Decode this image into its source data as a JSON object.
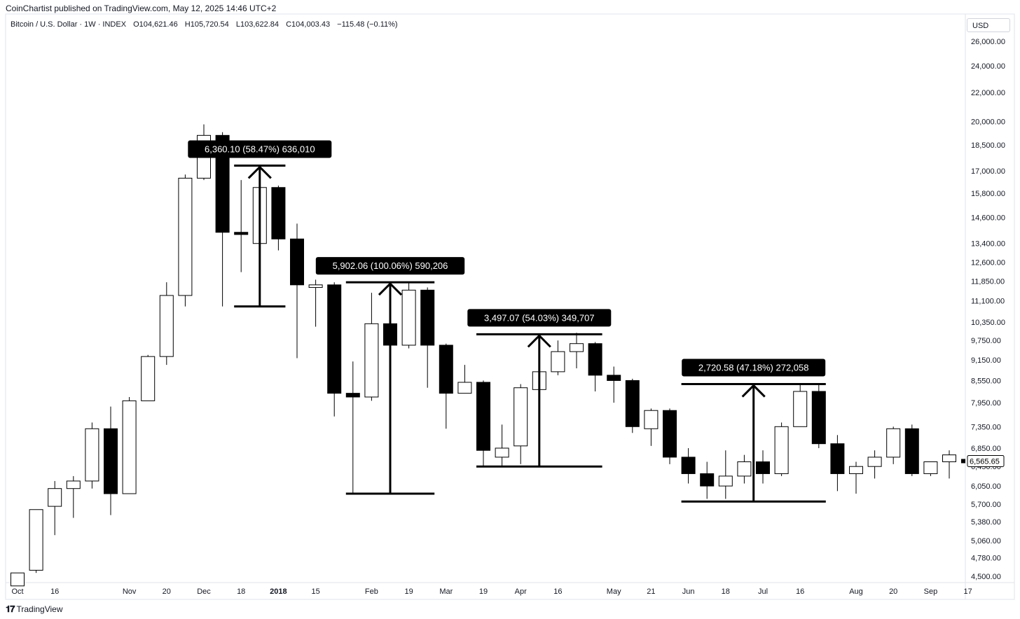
{
  "header": {
    "attribution": "CoinChartist published on TradingView.com, May 12, 2025 14:46 UTC+2",
    "symbol": "Bitcoin / U.S. Dollar · 1W · INDEX",
    "open": "O104,621.46",
    "high": "H105,720.54",
    "low": "L103,622.84",
    "close": "C104,003.43",
    "change": "−115.48 (−0.11%)"
  },
  "currency": "USD",
  "footer": {
    "logo_mark": "𝟏𝟕",
    "logo_text": "TradingView"
  },
  "chart_data": {
    "type": "candlestick",
    "scale": "log",
    "ylim": [
      4400,
      27000
    ],
    "y_ticks": [
      "26,000.00",
      "24,000.00",
      "22,000.00",
      "20,000.00",
      "18,500.00",
      "17,000.00",
      "15,800.00",
      "14,600.00",
      "13,400.00",
      "12,600.00",
      "11,850.00",
      "11,100.00",
      "10,350.00",
      "9,750.00",
      "9,150.00",
      "8,550.00",
      "7,950.00",
      "7,350.00",
      "6,850.00",
      "6,450.00",
      "6,050.00",
      "5,700.00",
      "5,380.00",
      "5,060.00",
      "4,780.00",
      "4,500.00"
    ],
    "x_ticks": [
      {
        "label": "Oct",
        "i": 0
      },
      {
        "label": "16",
        "i": 2
      },
      {
        "label": "Nov",
        "i": 6
      },
      {
        "label": "20",
        "i": 8
      },
      {
        "label": "Dec",
        "i": 10
      },
      {
        "label": "18",
        "i": 12
      },
      {
        "label": "2018",
        "i": 14,
        "bold": true
      },
      {
        "label": "15",
        "i": 16
      },
      {
        "label": "Feb",
        "i": 19
      },
      {
        "label": "19",
        "i": 21
      },
      {
        "label": "Mar",
        "i": 23
      },
      {
        "label": "19",
        "i": 25
      },
      {
        "label": "Apr",
        "i": 27
      },
      {
        "label": "16",
        "i": 29
      },
      {
        "label": "May",
        "i": 32
      },
      {
        "label": "21",
        "i": 34
      },
      {
        "label": "Jun",
        "i": 36
      },
      {
        "label": "18",
        "i": 38
      },
      {
        "label": "Jul",
        "i": 40
      },
      {
        "label": "16",
        "i": 42
      },
      {
        "label": "Aug",
        "i": 45
      },
      {
        "label": "20",
        "i": 47
      },
      {
        "label": "Sep",
        "i": 49
      },
      {
        "label": "17",
        "i": 51
      }
    ],
    "last_price": "6,565.65",
    "candles": [
      {
        "o": 4360,
        "h": 4550,
        "l": 4360,
        "c": 4550
      },
      {
        "o": 4590,
        "h": 5600,
        "l": 4550,
        "c": 5600
      },
      {
        "o": 5660,
        "h": 6150,
        "l": 5150,
        "c": 6000
      },
      {
        "o": 6000,
        "h": 6250,
        "l": 5450,
        "c": 6150
      },
      {
        "o": 6150,
        "h": 7450,
        "l": 6000,
        "c": 7300
      },
      {
        "o": 7300,
        "h": 7850,
        "l": 5500,
        "c": 5900
      },
      {
        "o": 5900,
        "h": 8100,
        "l": 5900,
        "c": 8000
      },
      {
        "o": 8000,
        "h": 9300,
        "l": 8000,
        "c": 9250
      },
      {
        "o": 9250,
        "h": 11800,
        "l": 9000,
        "c": 11300
      },
      {
        "o": 11300,
        "h": 16800,
        "l": 10900,
        "c": 16600
      },
      {
        "o": 16600,
        "h": 19800,
        "l": 16500,
        "c": 19100
      },
      {
        "o": 19100,
        "h": 19300,
        "l": 10900,
        "c": 13900
      },
      {
        "o": 13900,
        "h": 16500,
        "l": 12200,
        "c": 13800
      },
      {
        "o": 13400,
        "h": 17100,
        "l": 12800,
        "c": 16100
      },
      {
        "o": 16100,
        "h": 16200,
        "l": 13100,
        "c": 13600
      },
      {
        "o": 13600,
        "h": 14300,
        "l": 9200,
        "c": 11700
      },
      {
        "o": 11600,
        "h": 11900,
        "l": 10200,
        "c": 11700
      },
      {
        "o": 11700,
        "h": 11800,
        "l": 7600,
        "c": 8200
      },
      {
        "o": 8200,
        "h": 9100,
        "l": 5900,
        "c": 8100
      },
      {
        "o": 8100,
        "h": 11400,
        "l": 8000,
        "c": 10300
      },
      {
        "o": 10300,
        "h": 11200,
        "l": 9500,
        "c": 9600
      },
      {
        "o": 9600,
        "h": 11800,
        "l": 9500,
        "c": 11500
      },
      {
        "o": 11500,
        "h": 11600,
        "l": 8350,
        "c": 9600
      },
      {
        "o": 9600,
        "h": 9650,
        "l": 7300,
        "c": 8200
      },
      {
        "o": 8200,
        "h": 9000,
        "l": 8200,
        "c": 8500
      },
      {
        "o": 8500,
        "h": 8550,
        "l": 6450,
        "c": 6800
      },
      {
        "o": 6650,
        "h": 7400,
        "l": 6450,
        "c": 6850
      },
      {
        "o": 6900,
        "h": 8450,
        "l": 6500,
        "c": 8350
      },
      {
        "o": 8300,
        "h": 8950,
        "l": 7850,
        "c": 8800
      },
      {
        "o": 8800,
        "h": 9750,
        "l": 8700,
        "c": 9400
      },
      {
        "o": 9400,
        "h": 10000,
        "l": 8900,
        "c": 9650
      },
      {
        "o": 9650,
        "h": 9700,
        "l": 8250,
        "c": 8700
      },
      {
        "o": 8700,
        "h": 8950,
        "l": 7950,
        "c": 8550
      },
      {
        "o": 8550,
        "h": 8600,
        "l": 7200,
        "c": 7350
      },
      {
        "o": 7300,
        "h": 7800,
        "l": 6900,
        "c": 7750
      },
      {
        "o": 7750,
        "h": 7800,
        "l": 6500,
        "c": 6650
      },
      {
        "o": 6650,
        "h": 6850,
        "l": 6100,
        "c": 6300
      },
      {
        "o": 6300,
        "h": 6550,
        "l": 5800,
        "c": 6050
      },
      {
        "o": 6050,
        "h": 6800,
        "l": 5800,
        "c": 6250
      },
      {
        "o": 6250,
        "h": 6700,
        "l": 6100,
        "c": 6550
      },
      {
        "o": 6550,
        "h": 6800,
        "l": 6100,
        "c": 6300
      },
      {
        "o": 6300,
        "h": 7450,
        "l": 6250,
        "c": 7350
      },
      {
        "o": 7350,
        "h": 8450,
        "l": 7350,
        "c": 8250
      },
      {
        "o": 8250,
        "h": 8450,
        "l": 6850,
        "c": 6950
      },
      {
        "o": 6950,
        "h": 7150,
        "l": 5950,
        "c": 6300
      },
      {
        "o": 6300,
        "h": 6550,
        "l": 5900,
        "c": 6450
      },
      {
        "o": 6450,
        "h": 6800,
        "l": 6200,
        "c": 6650
      },
      {
        "o": 6650,
        "h": 7350,
        "l": 6500,
        "c": 7300
      },
      {
        "o": 7300,
        "h": 7400,
        "l": 6250,
        "c": 6300
      },
      {
        "o": 6300,
        "h": 6550,
        "l": 6250,
        "c": 6550
      },
      {
        "o": 6550,
        "h": 6800,
        "l": 6200,
        "c": 6700
      }
    ],
    "annotations": [
      {
        "label": "6,360.10 (58.47%) 636,010",
        "i0": 12,
        "i1": 14,
        "low": 10900,
        "high": 17300,
        "arrow_i": 13
      },
      {
        "label": "5,902.06 (100.06%) 590,206",
        "i0": 18,
        "i1": 22,
        "low": 5900,
        "high": 11800,
        "arrow_i": 20
      },
      {
        "label": "3,497.07 (54.03%) 349,707",
        "i0": 25,
        "i1": 31,
        "low": 6450,
        "high": 9950,
        "arrow_i": 28
      },
      {
        "label": "2,720.58 (47.18%) 272,058",
        "i0": 36,
        "i1": 43,
        "low": 5750,
        "high": 8450,
        "arrow_i": 39.5
      }
    ]
  }
}
